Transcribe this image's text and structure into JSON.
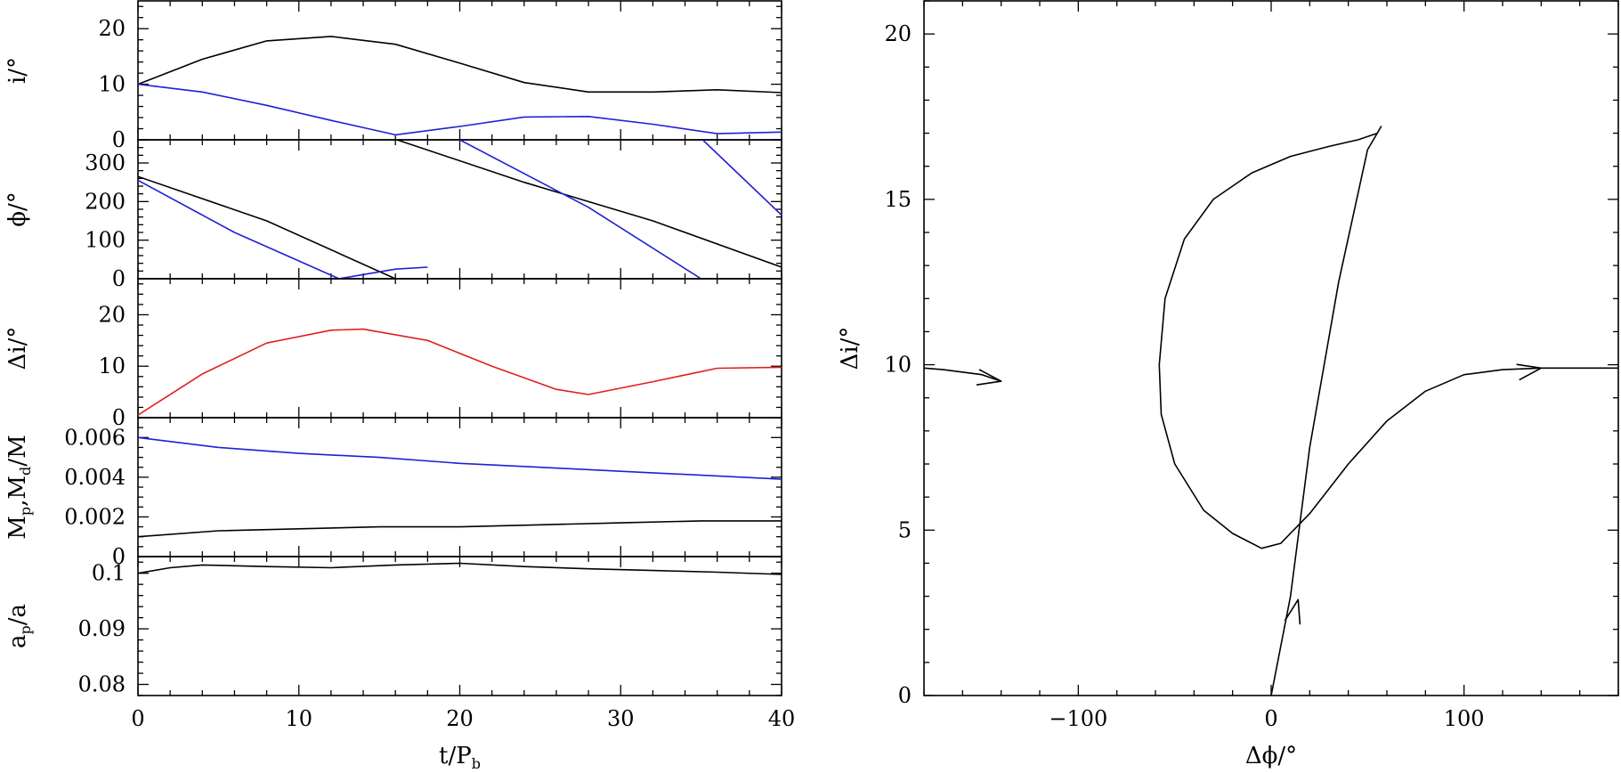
{
  "colors": {
    "black": "#000000",
    "blue": "#1f1fd6",
    "red": "#e01e1e"
  },
  "left": {
    "x_ticks": [
      "0",
      "10",
      "20",
      "30",
      "40"
    ],
    "x_label": "t/P",
    "x_label_sub": "b"
  },
  "panels": [
    {
      "ylabel": "i/°",
      "ylabel_sub": "",
      "ylabel_suffix": "",
      "yticks": [
        "0",
        "10",
        "20"
      ]
    },
    {
      "ylabel": "ϕ/°",
      "ylabel_sub": "",
      "ylabel_suffix": "",
      "yticks": [
        "0",
        "100",
        "200",
        "300"
      ]
    },
    {
      "ylabel": "Δi/°",
      "ylabel_sub": "",
      "ylabel_suffix": "",
      "yticks": [
        "0",
        "10",
        "20"
      ]
    },
    {
      "ylabel": "M",
      "ylabel_sub": "p",
      "ylabel_suffix": ",M",
      "ylabel_sub2": "d",
      "ylabel_tail": "/M",
      "yticks": [
        "0",
        "0.002",
        "0.004",
        "0.006"
      ]
    },
    {
      "ylabel": "a",
      "ylabel_sub": "p",
      "ylabel_suffix": "",
      "ylabel_tail": "/a",
      "yticks": [
        "0.08",
        "0.09",
        "0.1"
      ]
    }
  ],
  "right": {
    "x_ticks": [
      "−100",
      "0",
      "100"
    ],
    "y_ticks": [
      "0",
      "5",
      "10",
      "15",
      "20"
    ],
    "x_label": "Δϕ/°",
    "y_label": "Δi/°"
  },
  "chart_data": [
    {
      "type": "line",
      "xlim": [
        0,
        40
      ],
      "ylim": [
        0,
        25
      ],
      "series": [
        {
          "color": "black",
          "x": [
            0,
            4,
            8,
            12,
            16,
            20,
            24,
            28,
            32,
            36,
            40
          ],
          "y": [
            10,
            14.5,
            17.8,
            18.6,
            17.2,
            13.8,
            10.3,
            8.6,
            8.6,
            9.0,
            8.5
          ]
        },
        {
          "color": "blue",
          "x": [
            0,
            4,
            8,
            12,
            16,
            20,
            24,
            28,
            32,
            36,
            40
          ],
          "y": [
            10,
            8.6,
            6.2,
            3.5,
            0.9,
            2.4,
            4.1,
            4.2,
            2.8,
            1.1,
            1.4
          ]
        }
      ]
    },
    {
      "type": "line",
      "xlim": [
        0,
        40
      ],
      "ylim": [
        0,
        360
      ],
      "series": [
        {
          "color": "black",
          "x": [
            0,
            8,
            16,
            16.1,
            24,
            32,
            40
          ],
          "y": [
            265,
            150,
            0,
            360,
            250,
            150,
            30
          ]
        },
        {
          "color": "blue",
          "x": [
            0,
            6,
            12.5,
            16,
            18,
            20,
            28,
            35,
            35.1,
            40
          ],
          "y": [
            255,
            120,
            0,
            25,
            30,
            360,
            185,
            0,
            360,
            165
          ]
        }
      ]
    },
    {
      "type": "line",
      "xlim": [
        0,
        40
      ],
      "ylim": [
        0,
        27
      ],
      "series": [
        {
          "color": "red",
          "x": [
            0,
            4,
            8,
            12,
            14,
            18,
            22,
            26,
            28,
            32,
            36,
            40
          ],
          "y": [
            0.5,
            8.5,
            14.5,
            17.0,
            17.2,
            15.0,
            10.0,
            5.5,
            4.5,
            7.0,
            9.6,
            9.8
          ]
        }
      ]
    },
    {
      "type": "line",
      "xlim": [
        0,
        40
      ],
      "ylim": [
        0,
        0.007
      ],
      "series": [
        {
          "color": "blue",
          "x": [
            0,
            5,
            10,
            15,
            20,
            25,
            30,
            35,
            40
          ],
          "y": [
            0.006,
            0.0055,
            0.0052,
            0.005,
            0.0047,
            0.0045,
            0.0043,
            0.0041,
            0.0039
          ]
        },
        {
          "color": "black",
          "x": [
            0,
            5,
            10,
            15,
            20,
            25,
            30,
            35,
            40
          ],
          "y": [
            0.001,
            0.0013,
            0.0014,
            0.0015,
            0.0015,
            0.0016,
            0.0017,
            0.0018,
            0.0018
          ]
        }
      ]
    },
    {
      "type": "line",
      "xlim": [
        0,
        40
      ],
      "ylim": [
        0.078,
        0.103
      ],
      "series": [
        {
          "color": "black",
          "x": [
            0,
            2,
            4,
            8,
            12,
            16,
            20,
            24,
            28,
            32,
            36,
            40
          ],
          "y": [
            0.1,
            0.101,
            0.1015,
            0.1012,
            0.101,
            0.1015,
            0.1018,
            0.1012,
            0.1008,
            0.1005,
            0.1002,
            0.0998
          ]
        }
      ]
    },
    {
      "type": "line",
      "xlim": [
        -180,
        180
      ],
      "ylim": [
        0,
        21
      ],
      "series": [
        {
          "color": "black",
          "x": [
            0,
            10,
            20,
            35,
            50,
            57,
            55,
            45,
            30,
            10,
            -10,
            -30,
            -45,
            -55,
            -58,
            -57,
            -50,
            -35,
            -20,
            -5,
            5,
            20,
            40,
            60,
            80,
            100,
            120,
            140,
            160,
            180
          ],
          "y": [
            0,
            3,
            7.5,
            12.5,
            16.5,
            17.2,
            17.0,
            16.8,
            16.6,
            16.3,
            15.8,
            15.0,
            13.8,
            12.0,
            10.0,
            8.5,
            7.0,
            5.6,
            4.9,
            4.45,
            4.6,
            5.5,
            7.0,
            8.3,
            9.2,
            9.7,
            9.85,
            9.9,
            9.9,
            9.9
          ]
        },
        {
          "color": "black",
          "x": [
            -180,
            -170,
            -150,
            -140
          ],
          "y": [
            9.9,
            9.85,
            9.7,
            9.5
          ]
        }
      ]
    }
  ]
}
